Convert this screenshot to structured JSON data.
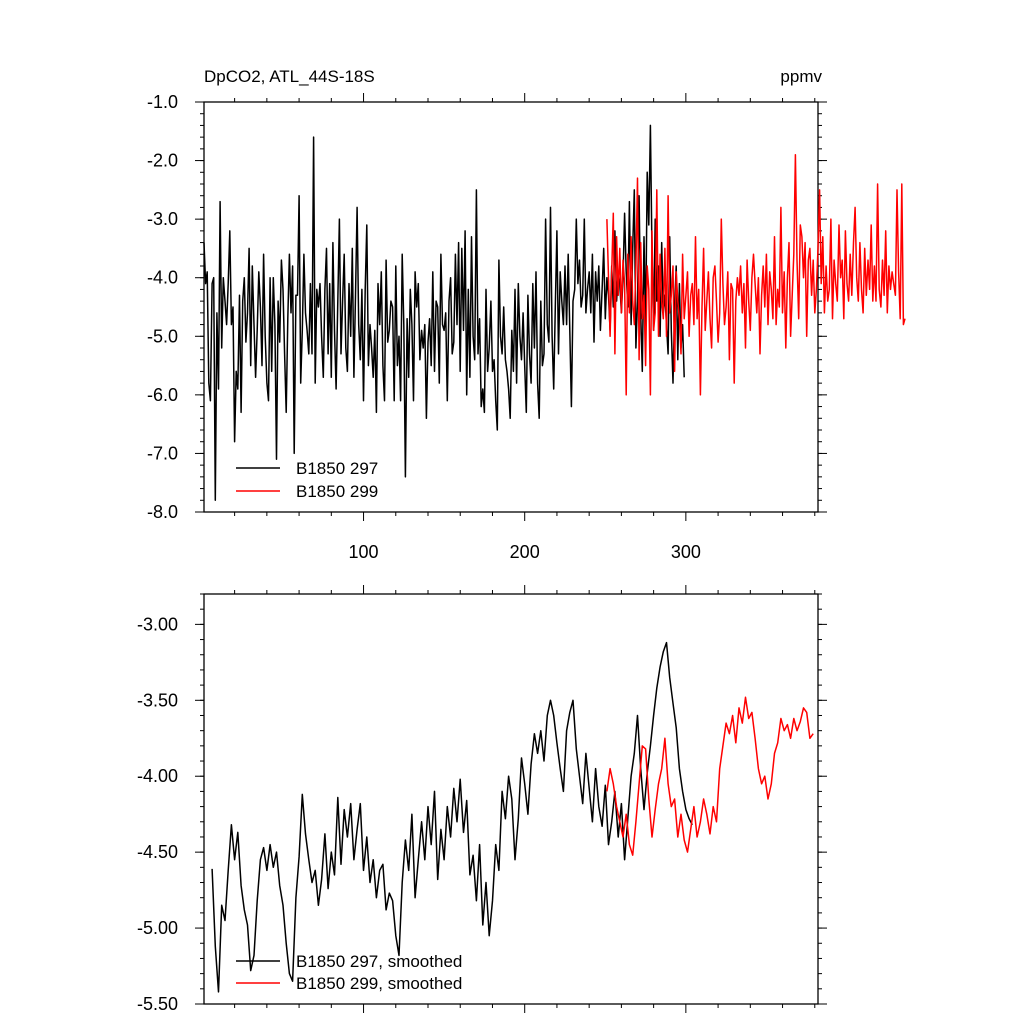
{
  "chart_data": [
    {
      "type": "line",
      "title": "DpCO2, ATL_44S-18S",
      "units": "ppmv",
      "xlim": [
        1,
        382
      ],
      "ylim": [
        -8.0,
        -1.0
      ],
      "x_ticks": [
        100,
        200,
        300
      ],
      "x_tick_labels": [
        "100",
        "200",
        "300"
      ],
      "y_ticks": [
        -1.0,
        -2.0,
        -3.0,
        -4.0,
        -5.0,
        -6.0,
        -7.0,
        -8.0
      ],
      "y_tick_labels": [
        "-1.0",
        "-2.0",
        "-3.0",
        "-4.0",
        "-5.0",
        "-6.0",
        "-7.0",
        "-8.0"
      ],
      "legend_position": "bottom-left",
      "series": [
        {
          "name": "B1850 297",
          "color": "#000000",
          "x_start": 1,
          "values": [
            -3.4,
            -4.1,
            -3.9,
            -5.8,
            -6.1,
            -4.1,
            -4.0,
            -7.8,
            -4.6,
            -5.9,
            -2.7,
            -5.2,
            -4.0,
            -4.4,
            -4.8,
            -4.1,
            -3.2,
            -4.8,
            -4.5,
            -6.8,
            -5.6,
            -5.9,
            -4.3,
            -6.3,
            -4.4,
            -4.0,
            -5.1,
            -4.6,
            -3.5,
            -5.5,
            -3.8,
            -4.8,
            -5.7,
            -4.9,
            -3.9,
            -4.5,
            -5.5,
            -3.6,
            -5.0,
            -5.8,
            -6.1,
            -4.0,
            -5.6,
            -4.0,
            -4.8,
            -7.1,
            -4.4,
            -5.1,
            -3.7,
            -4.2,
            -5.3,
            -6.3,
            -4.7,
            -3.6,
            -4.6,
            -3.8,
            -7.0,
            -4.3,
            -4.3,
            -2.6,
            -5.8,
            -4.9,
            -3.6,
            -4.6,
            -4.9,
            -5.3,
            -4.1,
            -5.3,
            -1.6,
            -5.8,
            -4.2,
            -4.5,
            -4.1,
            -5.0,
            -5.7,
            -4.2,
            -3.5,
            -5.3,
            -4.1,
            -5.7,
            -3.4,
            -4.9,
            -5.9,
            -4.4,
            -3.0,
            -5.3,
            -4.4,
            -3.6,
            -5.2,
            -5.6,
            -4.1,
            -5.0,
            -3.5,
            -5.7,
            -4.3,
            -2.8,
            -4.8,
            -5.4,
            -4.2,
            -6.1,
            -4.2,
            -3.1,
            -5.5,
            -4.8,
            -5.2,
            -5.7,
            -4.9,
            -6.3,
            -4.1,
            -4.8,
            -3.9,
            -5.5,
            -6.1,
            -3.7,
            -5.1,
            -4.9,
            -4.4,
            -4.5,
            -6.1,
            -3.8,
            -5.5,
            -5.0,
            -6.1,
            -3.6,
            -4.8,
            -7.4,
            -4.7,
            -5.7,
            -4.2,
            -4.8,
            -6.1,
            -3.9,
            -4.5,
            -4.1,
            -5.4,
            -4.9,
            -5.2,
            -4.8,
            -6.4,
            -5.1,
            -4.7,
            -5.5,
            -3.9,
            -5.6,
            -4.4,
            -4.5,
            -5.8,
            -3.6,
            -4.8,
            -4.9,
            -4.6,
            -6.1,
            -4.4,
            -4.0,
            -5.3,
            -5.1,
            -3.6,
            -4.8,
            -3.4,
            -5.6,
            -3.5,
            -4.9,
            -3.2,
            -6.0,
            -4.2,
            -5.7,
            -3.3,
            -5.0,
            -5.4,
            -2.5,
            -5.3,
            -4.7,
            -6.2,
            -5.9,
            -6.3,
            -4.2,
            -5.6,
            -5.2,
            -4.4,
            -5.6,
            -5.4,
            -6.1,
            -6.6,
            -3.7,
            -5.0,
            -5.3,
            -4.5,
            -5.4,
            -5.6,
            -5.9,
            -6.4,
            -4.9,
            -5.6,
            -4.2,
            -5.8,
            -4.1,
            -5.0,
            -5.4,
            -4.6,
            -5.5,
            -6.3,
            -4.3,
            -5.3,
            -5.8,
            -4.1,
            -5.2,
            -3.9,
            -5.8,
            -6.4,
            -4.4,
            -5.5,
            -5.3,
            -3.0,
            -4.8,
            -5.1,
            -2.8,
            -5.0,
            -5.9,
            -4.5,
            -3.2,
            -5.3,
            -3.9,
            -4.4,
            -4.8,
            -3.8,
            -4.8,
            -3.6,
            -4.9,
            -6.2,
            -4.4,
            -4.2,
            -3.0,
            -4.1,
            -3.7,
            -4.5,
            -4.3,
            -3.0,
            -4.6,
            -4.2,
            -3.9,
            -4.6,
            -3.6,
            -5.1,
            -3.9,
            -4.4,
            -3.8,
            -4.9,
            -4.2,
            -3.5,
            -4.7,
            -4.0,
            -4.3,
            -4.9,
            -3.8,
            -4.5,
            -3.2,
            -4.4,
            -3.9,
            -4.1,
            -4.6,
            -4.0,
            -2.9,
            -3.9,
            -4.5,
            -2.7,
            -4.8,
            -3.5,
            -2.5,
            -5.2,
            -4.4,
            -2.6,
            -4.6,
            -5.6,
            -3.3,
            -4.9,
            -2.2,
            -3.1,
            -1.4,
            -3.6,
            -4.9,
            -3.0,
            -4.4,
            -3.8,
            -5.0,
            -3.4,
            -4.6,
            -4.3,
            -4.8,
            -5.3,
            -3.3,
            -4.9,
            -5.8,
            -4.5,
            -3.8,
            -5.4,
            -4.1,
            -5.2,
            -4.8,
            -5.7
          ]
        },
        {
          "name": "B1850 299",
          "color": "#ff0000",
          "x_start": 251,
          "values": [
            -3.0,
            -4.0,
            -5.0,
            -3.9,
            -2.9,
            -5.3,
            -3.3,
            -4.3,
            -3.5,
            -4.6,
            -3.7,
            -4.1,
            -6.0,
            -3.6,
            -4.6,
            -3.3,
            -4.4,
            -4.8,
            -3.8,
            -2.3,
            -5.4,
            -3.4,
            -4.7,
            -4.3,
            -5.5,
            -3.8,
            -4.2,
            -6.0,
            -3.2,
            -4.9,
            -4.6,
            -2.5,
            -5.0,
            -3.6,
            -4.4,
            -4.7,
            -3.5,
            -5.0,
            -2.6,
            -4.6,
            -4.3,
            -3.8,
            -5.6,
            -3.9,
            -4.4,
            -4.7,
            -5.3,
            -3.6,
            -4.7,
            -4.3,
            -3.9,
            -5.0,
            -4.3,
            -4.1,
            -4.8,
            -3.3,
            -4.7,
            -4.2,
            -6.0,
            -4.5,
            -3.5,
            -4.9,
            -4.4,
            -3.9,
            -4.7,
            -5.2,
            -4.0,
            -3.8,
            -4.4,
            -5.1,
            -4.6,
            -3.0,
            -4.1,
            -4.8,
            -4.5,
            -3.9,
            -5.4,
            -4.1,
            -4.2,
            -5.8,
            -4.4,
            -4.0,
            -4.3,
            -3.8,
            -4.6,
            -4.1,
            -5.2,
            -3.7,
            -4.4,
            -4.9,
            -4.0,
            -3.6,
            -4.1,
            -4.6,
            -4.0,
            -5.3,
            -4.3,
            -3.8,
            -4.5,
            -3.6,
            -4.8,
            -3.9,
            -4.2,
            -4.7,
            -3.3,
            -4.8,
            -4.2,
            -4.5,
            -2.8,
            -4.6,
            -3.9,
            -5.2,
            -4.0,
            -3.4,
            -5.0,
            -4.3,
            -3.6,
            -1.9,
            -3.7,
            -4.7,
            -3.1,
            -3.3,
            -4.0,
            -3.4,
            -5.0,
            -3.7,
            -3.5,
            -4.3,
            -3.7,
            -4.6,
            -4.2,
            -3.5,
            -2.5,
            -4.1,
            -3.3,
            -4.6,
            -3.8,
            -4.4,
            -4.2,
            -3.0,
            -4.7,
            -3.7,
            -4.1,
            -4.4,
            -3.1,
            -4.0,
            -3.7,
            -4.7,
            -3.2,
            -4.1,
            -4.4,
            -3.6,
            -4.3,
            -3.4,
            -2.8,
            -4.0,
            -4.4,
            -3.4,
            -4.2,
            -4.6,
            -3.5,
            -4.3,
            -3.7,
            -4.2,
            -3.1,
            -4.4,
            -3.8,
            -4.4,
            -2.4,
            -4.2,
            -4.5,
            -3.7,
            -4.3,
            -3.2,
            -4.6,
            -3.8,
            -4.2,
            -3.9,
            -4.1,
            -4.3,
            -2.5,
            -3.9,
            -4.7,
            -2.4,
            -4.8,
            -4.7
          ]
        }
      ]
    },
    {
      "type": "line",
      "xlim": [
        1,
        382
      ],
      "ylim": [
        -5.5,
        -2.8
      ],
      "x_ticks": [
        100,
        200,
        300
      ],
      "x_tick_labels": [],
      "y_ticks": [
        -3.0,
        -3.5,
        -4.0,
        -4.5,
        -5.0,
        -5.5
      ],
      "y_tick_labels": [
        "-3.00",
        "-3.50",
        "-4.00",
        "-4.50",
        "-5.00",
        "-5.50"
      ],
      "legend_position": "bottom-left",
      "series": [
        {
          "name": "B1850 297, smoothed",
          "color": "#000000",
          "x": [
            6,
            8,
            10,
            12,
            14,
            16,
            18,
            20,
            22,
            24,
            26,
            28,
            30,
            32,
            34,
            36,
            38,
            40,
            42,
            44,
            46,
            48,
            50,
            52,
            54,
            56,
            58,
            60,
            62,
            64,
            66,
            68,
            70,
            72,
            74,
            76,
            78,
            80,
            82,
            84,
            86,
            88,
            90,
            92,
            94,
            96,
            98,
            100,
            102,
            104,
            106,
            108,
            110,
            112,
            114,
            116,
            118,
            120,
            122,
            124,
            126,
            128,
            130,
            132,
            134,
            136,
            138,
            140,
            142,
            144,
            146,
            148,
            150,
            152,
            154,
            156,
            158,
            160,
            162,
            164,
            166,
            168,
            170,
            172,
            174,
            176,
            178,
            180,
            182,
            184,
            186,
            188,
            190,
            192,
            194,
            196,
            198,
            200,
            202,
            204,
            206,
            208,
            210,
            212,
            214,
            216,
            218,
            220,
            222,
            224,
            226,
            228,
            230,
            232,
            234,
            236,
            238,
            240,
            242,
            244,
            246,
            248,
            250,
            252,
            254,
            256,
            258,
            260,
            262,
            264,
            266,
            268,
            270,
            272,
            274,
            276,
            278,
            280,
            282,
            284,
            286,
            288,
            290,
            292,
            294,
            296,
            298,
            300,
            302,
            304
          ],
          "y": [
            -4.61,
            -5.12,
            -5.42,
            -4.85,
            -4.95,
            -4.62,
            -4.32,
            -4.55,
            -4.37,
            -4.72,
            -4.88,
            -4.98,
            -5.28,
            -5.18,
            -4.82,
            -4.55,
            -4.47,
            -4.62,
            -4.45,
            -4.6,
            -4.5,
            -4.72,
            -4.85,
            -5.1,
            -5.3,
            -5.35,
            -4.8,
            -4.53,
            -4.12,
            -4.38,
            -4.55,
            -4.7,
            -4.62,
            -4.85,
            -4.68,
            -4.38,
            -4.74,
            -4.5,
            -4.65,
            -4.14,
            -4.58,
            -4.22,
            -4.4,
            -4.18,
            -4.55,
            -4.35,
            -4.18,
            -4.62,
            -4.4,
            -4.7,
            -4.55,
            -4.8,
            -4.62,
            -4.58,
            -4.88,
            -4.77,
            -4.82,
            -5.05,
            -5.18,
            -4.7,
            -4.42,
            -4.62,
            -4.25,
            -4.8,
            -4.55,
            -4.3,
            -4.55,
            -4.2,
            -4.45,
            -4.1,
            -4.68,
            -4.35,
            -4.55,
            -4.2,
            -4.4,
            -4.08,
            -4.3,
            -4.02,
            -4.37,
            -4.16,
            -4.65,
            -4.52,
            -4.82,
            -4.45,
            -4.98,
            -4.7,
            -5.05,
            -4.82,
            -4.45,
            -4.62,
            -4.1,
            -4.28,
            -4.0,
            -4.15,
            -4.55,
            -4.28,
            -3.88,
            -4.05,
            -4.25,
            -3.92,
            -3.72,
            -3.85,
            -3.7,
            -3.9,
            -3.6,
            -3.5,
            -3.6,
            -3.78,
            -3.95,
            -4.1,
            -3.7,
            -3.58,
            -3.5,
            -3.82,
            -4.0,
            -4.18,
            -3.85,
            -4.08,
            -4.3,
            -3.95,
            -4.2,
            -4.33,
            -4.06,
            -4.45,
            -4.3,
            -4.1,
            -4.4,
            -4.18,
            -4.55,
            -4.28,
            -4.0,
            -3.85,
            -3.6,
            -3.95,
            -4.22,
            -3.98,
            -3.8,
            -3.6,
            -3.42,
            -3.28,
            -3.18,
            -3.12,
            -3.35,
            -3.52,
            -3.68,
            -3.95,
            -4.1,
            -4.22,
            -4.28,
            -4.32
          ]
        },
        {
          "name": "B1850 299, smoothed",
          "color": "#ff0000",
          "x": [
            251,
            253,
            255,
            257,
            259,
            261,
            263,
            265,
            267,
            269,
            271,
            273,
            275,
            277,
            279,
            281,
            283,
            285,
            287,
            289,
            291,
            293,
            295,
            297,
            299,
            301,
            303,
            305,
            307,
            309,
            311,
            313,
            315,
            317,
            319,
            321,
            323,
            325,
            327,
            329,
            331,
            333,
            335,
            337,
            339,
            341,
            343,
            345,
            347,
            349,
            351,
            353,
            355,
            357,
            359,
            361,
            363,
            365,
            367,
            369,
            371,
            373,
            375,
            377,
            379
          ],
          "y": [
            -4.1,
            -3.95,
            -4.05,
            -4.2,
            -4.3,
            -4.4,
            -4.25,
            -4.45,
            -4.52,
            -4.3,
            -4.05,
            -3.8,
            -3.82,
            -4.15,
            -4.4,
            -4.22,
            -4.05,
            -3.95,
            -3.75,
            -4.05,
            -4.2,
            -4.15,
            -4.4,
            -4.25,
            -4.42,
            -4.5,
            -4.35,
            -4.2,
            -4.4,
            -4.3,
            -4.15,
            -4.25,
            -4.38,
            -4.2,
            -4.3,
            -3.95,
            -3.8,
            -3.65,
            -3.72,
            -3.6,
            -3.78,
            -3.55,
            -3.65,
            -3.48,
            -3.62,
            -3.58,
            -3.75,
            -3.95,
            -4.05,
            -4.0,
            -4.15,
            -4.05,
            -3.85,
            -3.78,
            -3.62,
            -3.7,
            -3.66,
            -3.75,
            -3.62,
            -3.7,
            -3.64,
            -3.55,
            -3.58,
            -3.75,
            -3.72
          ]
        }
      ]
    }
  ]
}
